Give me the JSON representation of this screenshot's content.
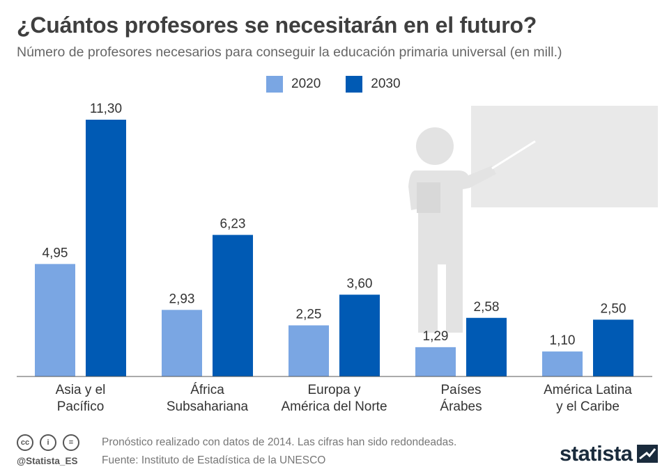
{
  "header": {
    "title": "¿Cuántos profesores se necesitarán en el futuro?",
    "subtitle": "Número de profesores necesarios para conseguir la educación primaria universal (en mill.)"
  },
  "chart_data": {
    "type": "bar",
    "categories": [
      [
        "Asia y el",
        "Pacífico"
      ],
      [
        "África",
        "Subsahariana"
      ],
      [
        "Europa y",
        "América del Norte"
      ],
      [
        "Países",
        "Árabes"
      ],
      [
        "América Latina",
        "y el Caribe"
      ]
    ],
    "series": [
      {
        "name": "2020",
        "values": [
          4.95,
          2.93,
          2.25,
          1.29,
          1.1
        ],
        "labels": [
          "4,95",
          "2,93",
          "2,25",
          "1,29",
          "1,10"
        ],
        "color": "#7aa6e3"
      },
      {
        "name": "2030",
        "values": [
          11.3,
          6.23,
          3.6,
          2.58,
          2.5
        ],
        "labels": [
          "11,30",
          "6,23",
          "3,60",
          "2,58",
          "2,50"
        ],
        "color": "#005ab4"
      }
    ],
    "ylim": [
      0,
      11.3
    ],
    "legend": "top-center",
    "grid": false
  },
  "footer": {
    "note": "Pronóstico realizado con datos de 2014. Las cifras han sido redondeadas.",
    "source": "Fuente: Instituto de Estadística de la UNESCO",
    "handle": "@Statista_ES",
    "license_icons": [
      "cc",
      "i",
      "="
    ],
    "brand": "statista"
  },
  "icons": {
    "illustration": "teacher-at-whiteboard-icon"
  }
}
